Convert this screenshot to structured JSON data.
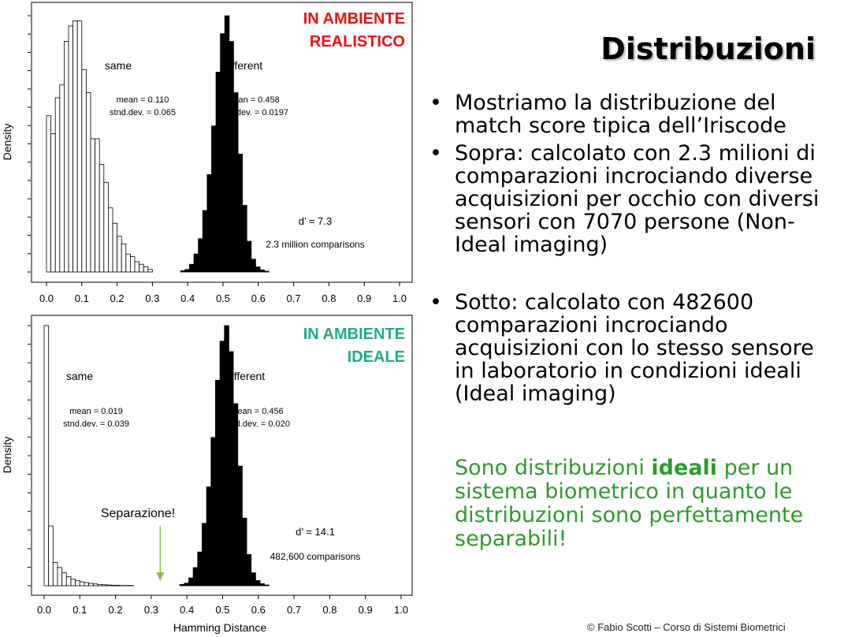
{
  "slide": {
    "title": "Distribuzioni",
    "bullets": [
      "Mostriamo la distribuzione del match score tipica dell’Iriscode",
      "Sopra: calcolato con 2.3 milioni di comparazioni incrociando diverse acquisizioni per occhio con diversi sensori con 7070 persone (Non-Ideal imaging)",
      "Sotto: calcolato con 482600 comparazioni incrociando acquisizioni con lo stesso sensore in laboratorio in condizioni ideali (Ideal imaging)"
    ],
    "note": {
      "before": "Sono distribuzioni ",
      "bold": "ideali",
      "after": " per un sistema biometrico in quanto le distribuzioni sono perfettamente separabili!",
      "color": "#2e9a2e"
    },
    "credit": "© Fabio Scotti  – Corso di Sistemi Biometrici"
  },
  "chart_data": [
    {
      "type": "bar",
      "tag_lines": [
        "IN AMBIENTE",
        "REALISTICO"
      ],
      "tag_color": "#ee1111",
      "ylabel": "Density",
      "xlabel": "",
      "x_ticks": [
        "0.0",
        "0.1",
        "0.2",
        "0.3",
        "0.4",
        "0.5",
        "0.6",
        "0.7",
        "0.8",
        "0.9",
        "1.0"
      ],
      "xlim": [
        0,
        1
      ],
      "bin_width": 0.0125,
      "series": [
        {
          "name": "same",
          "fill": "#ffffff",
          "stats": [
            "mean = 0.110",
            "stnd.dev. = 0.065"
          ],
          "x_start": 0.0,
          "values": [
            0.61,
            0.54,
            0.68,
            0.73,
            0.9,
            0.96,
            0.98,
            0.98,
            0.79,
            0.7,
            0.52,
            0.52,
            0.42,
            0.35,
            0.25,
            0.19,
            0.14,
            0.11,
            0.07,
            0.06,
            0.04,
            0.03,
            0.02,
            0.01
          ]
        },
        {
          "name": "different",
          "fill": "#000000",
          "stats": [
            "mean = 0.458",
            "stnd.dev. = 0.0197"
          ],
          "x_start": 0.38,
          "values": [
            0.005,
            0.01,
            0.03,
            0.07,
            0.13,
            0.24,
            0.38,
            0.57,
            0.78,
            0.93,
            1.0,
            0.9,
            0.7,
            0.46,
            0.26,
            0.12,
            0.05,
            0.02,
            0.008,
            0.003
          ]
        }
      ],
      "annotations": [
        "d’ = 7.3",
        "2.3 million comparisons"
      ]
    },
    {
      "type": "bar",
      "tag_lines": [
        "IN AMBIENTE",
        "IDEALE"
      ],
      "tag_color": "#22aa8c",
      "ylabel": "Density",
      "xlabel": "Hamming Distance",
      "x_ticks": [
        "0.0",
        "0.1",
        "0.2",
        "0.3",
        "0.4",
        "0.5",
        "0.6",
        "0.7",
        "0.8",
        "0.9",
        "1.0"
      ],
      "xlim": [
        0,
        1
      ],
      "bin_width": 0.0125,
      "series": [
        {
          "name": "same",
          "fill": "#ffffff",
          "stats": [
            "mean = 0.019",
            "stnd.dev. = 0.039"
          ],
          "x_start": 0.0,
          "values": [
            1.0,
            0.23,
            0.09,
            0.07,
            0.05,
            0.035,
            0.025,
            0.02,
            0.015,
            0.012,
            0.009,
            0.007,
            0.005,
            0.004,
            0.003,
            0.002,
            0.002,
            0.001,
            0.001,
            0.001
          ]
        },
        {
          "name": "different",
          "fill": "#000000",
          "stats": [
            "mean = 0.456",
            "stnd.dev. = 0.020"
          ],
          "x_start": 0.38,
          "values": [
            0.005,
            0.01,
            0.03,
            0.07,
            0.13,
            0.24,
            0.38,
            0.57,
            0.79,
            0.94,
            1.0,
            0.9,
            0.7,
            0.46,
            0.26,
            0.12,
            0.05,
            0.02,
            0.008,
            0.003
          ]
        }
      ],
      "annotations": [
        "d’ = 14.1",
        "482,600 comparisons"
      ],
      "callout": {
        "text": "Separazione!",
        "x": 0.325,
        "color": "#8bc34a"
      }
    }
  ]
}
